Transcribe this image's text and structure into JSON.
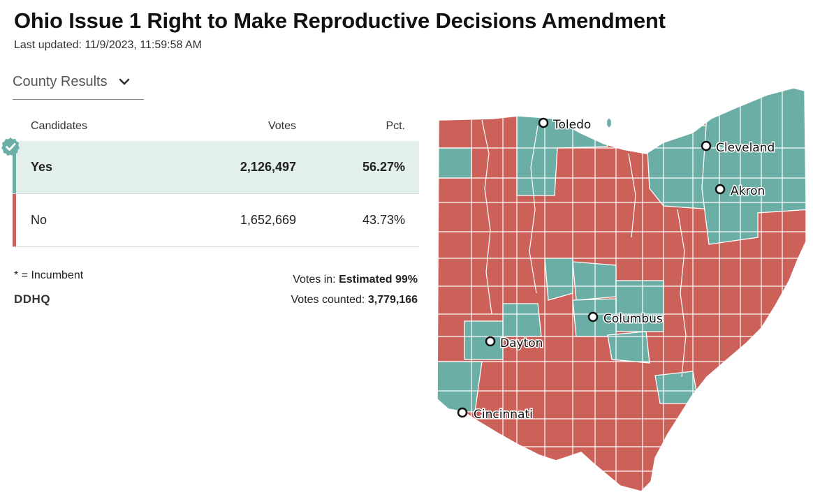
{
  "title": "Ohio Issue 1 Right to Make Reproductive Decisions Amendment",
  "last_updated": "Last updated: 11/9/2023, 11:59:58 AM",
  "view_selector": {
    "label": "County Results",
    "icon": "chevron-down-icon"
  },
  "table": {
    "headers": {
      "name": "Candidates",
      "votes": "Votes",
      "pct": "Pct."
    },
    "rows": [
      {
        "name": "Yes",
        "votes": "2,126,497",
        "pct": "56.27%",
        "color": "#6aaea6",
        "winner": true,
        "icon": "check-badge-icon"
      },
      {
        "name": "No",
        "votes": "1,652,669",
        "pct": "43.73%",
        "color": "#c9615c",
        "winner": false
      }
    ]
  },
  "footer": {
    "incumbent_note": "* = Incumbent",
    "logo": "DDHQ",
    "votes_in_label": "Votes in:",
    "votes_in_value": "Estimated 99%",
    "votes_counted_label": "Votes counted:",
    "votes_counted_value": "3,779,166"
  },
  "map": {
    "colors": {
      "yes": "#6aaea6",
      "no": "#cc6159",
      "border": "#ffffff"
    },
    "cities": [
      "Toledo",
      "Cleveland",
      "Akron",
      "Columbus",
      "Dayton",
      "Cincinnati"
    ]
  }
}
